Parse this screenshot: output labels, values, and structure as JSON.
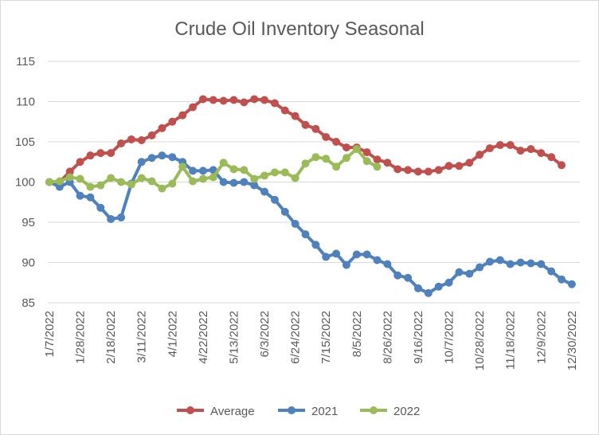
{
  "chart_data": {
    "type": "line",
    "title": "Crude Oil Inventory Seasonal",
    "xlabel": "",
    "ylabel": "",
    "ylim": [
      85,
      115
    ],
    "yticks": [
      85,
      90,
      95,
      100,
      105,
      110,
      115
    ],
    "xtick_labels": [
      "1/7/2022",
      "1/28/2022",
      "2/18/2022",
      "3/11/2022",
      "4/1/2022",
      "4/22/2022",
      "5/13/2022",
      "6/3/2022",
      "6/24/2022",
      "7/15/2022",
      "8/5/2022",
      "8/26/2022",
      "9/16/2022",
      "10/7/2022",
      "10/28/2022",
      "11/18/2022",
      "12/9/2022",
      "12/30/2022"
    ],
    "grid": "horizontal",
    "legend_position": "bottom",
    "colors": {
      "Average": "#c0504d",
      "2021": "#4f81bd",
      "2022": "#9bbb59"
    },
    "series": [
      {
        "name": "Average",
        "values": [
          100,
          100,
          101.3,
          102.5,
          103.3,
          103.6,
          103.6,
          104.8,
          105.3,
          105.2,
          105.8,
          106.7,
          107.5,
          108.3,
          109.3,
          110.3,
          110.2,
          110.1,
          110.2,
          109.9,
          110.3,
          110.2,
          109.8,
          108.9,
          108.2,
          107.1,
          106.6,
          105.6,
          105.0,
          104.3,
          104.3,
          103.7,
          102.8,
          102.4,
          101.6,
          101.5,
          101.3,
          101.3,
          101.5,
          102.0,
          102.0,
          102.4,
          103.4,
          104.2,
          104.6,
          104.6,
          103.9,
          104.1,
          103.6,
          103.1,
          102.1
        ]
      },
      {
        "name": "2021",
        "values": [
          100,
          99.4,
          100,
          98.3,
          98.1,
          96.8,
          95.4,
          95.6,
          99.8,
          102.5,
          103.0,
          103.3,
          103.1,
          102.5,
          101.4,
          101.4,
          101.5,
          100.0,
          99.9,
          100.0,
          99.6,
          98.8,
          97.8,
          96.3,
          94.8,
          93.5,
          92.2,
          90.7,
          91.1,
          89.7,
          91.0,
          91.0,
          90.3,
          89.8,
          88.4,
          88.1,
          86.8,
          86.2,
          87.0,
          87.5,
          88.8,
          88.6,
          89.4,
          90.1,
          90.3,
          89.8,
          90.0,
          89.9,
          89.8,
          88.9,
          87.9,
          87.3
        ]
      },
      {
        "name": "2022",
        "values": [
          100,
          100.1,
          100.6,
          100.4,
          99.4,
          99.6,
          100.5,
          100.0,
          99.7,
          100.5,
          100.1,
          99.2,
          99.8,
          101.9,
          100.1,
          100.4,
          100.6,
          102.4,
          101.6,
          101.5,
          100.4,
          100.8,
          101.2,
          101.2,
          100.5,
          102.3,
          103.1,
          102.9,
          101.9,
          103.0,
          104.1,
          102.6,
          101.9
        ]
      }
    ]
  }
}
